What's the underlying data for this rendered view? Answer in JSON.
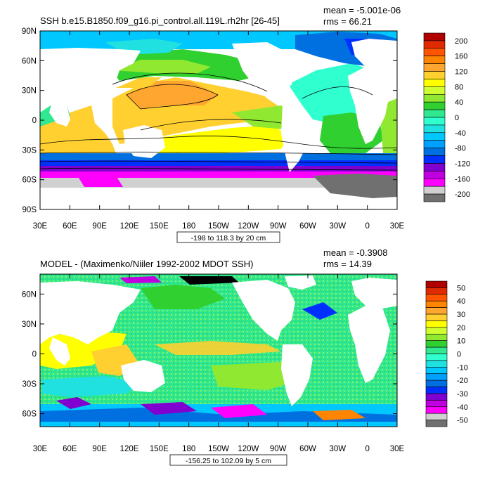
{
  "chart_data": [
    {
      "type": "heatmap",
      "title": "SSH b.e15.B1850.f09_g16.pi_control.all.119L.rh2hr [26-45]",
      "mean_label": "mean = -5.001e-06",
      "rms_label": "rms = 66.21",
      "lat_ticks": [
        "90N",
        "60N",
        "30N",
        "0",
        "30S",
        "60S",
        "90S"
      ],
      "lat_values": [
        90,
        60,
        30,
        0,
        -30,
        -60,
        -90
      ],
      "lat_range": [
        -90,
        90
      ],
      "lon_ticks": [
        "30E",
        "60E",
        "90E",
        "120E",
        "150E",
        "180",
        "150W",
        "120W",
        "90W",
        "60W",
        "30W",
        "0",
        "30E"
      ],
      "lon_range": [
        30,
        390
      ],
      "range_label": "-198 to 118.3 by 20 cm",
      "colorbar_labels": [
        "200",
        "160",
        "120",
        "80",
        "40",
        "0",
        "-40",
        "-80",
        "-120",
        "-160",
        "-200"
      ],
      "colorbar_colors": [
        "#b00000",
        "#e02a00",
        "#ff5500",
        "#ff8400",
        "#ffa630",
        "#ffd030",
        "#ffff00",
        "#d0ff30",
        "#90e830",
        "#30d030",
        "#30e890",
        "#30ffd0",
        "#20e0e0",
        "#00c8ff",
        "#00a0ff",
        "#0070e0",
        "#0030ff",
        "#8000d0",
        "#c000e0",
        "#ff00ff",
        "#d0d0d0",
        "#707070"
      ]
    },
    {
      "type": "heatmap",
      "title": "MODEL - (Maximenko/Niiler 1992-2002 MDOT SSH)",
      "mean_label": "mean = -0.3908",
      "rms_label": "rms = 14.39",
      "lat_ticks": [
        "60N",
        "30N",
        "0",
        "30S",
        "60S"
      ],
      "lat_values": [
        60,
        30,
        0,
        -30,
        -60
      ],
      "lat_range": [
        -73,
        80
      ],
      "lon_ticks": [
        "30E",
        "60E",
        "90E",
        "120E",
        "150E",
        "180",
        "150W",
        "120W",
        "90W",
        "60W",
        "30W",
        "0",
        "30E"
      ],
      "lon_range": [
        30,
        390
      ],
      "range_label": "-156.25 to 102.09 by 5 cm",
      "colorbar_labels": [
        "50",
        "40",
        "30",
        "20",
        "10",
        "0",
        "-10",
        "-20",
        "-30",
        "-40",
        "-50"
      ],
      "colorbar_colors": [
        "#b00000",
        "#e02a00",
        "#ff5500",
        "#ff8400",
        "#ffa630",
        "#ffd030",
        "#ffff00",
        "#d0ff30",
        "#90e830",
        "#30d030",
        "#30e890",
        "#30ffd0",
        "#20e0e0",
        "#00c8ff",
        "#00a0ff",
        "#0070e0",
        "#0030ff",
        "#8000d0",
        "#c000e0",
        "#ff00ff",
        "#d0d0d0",
        "#707070"
      ]
    }
  ]
}
